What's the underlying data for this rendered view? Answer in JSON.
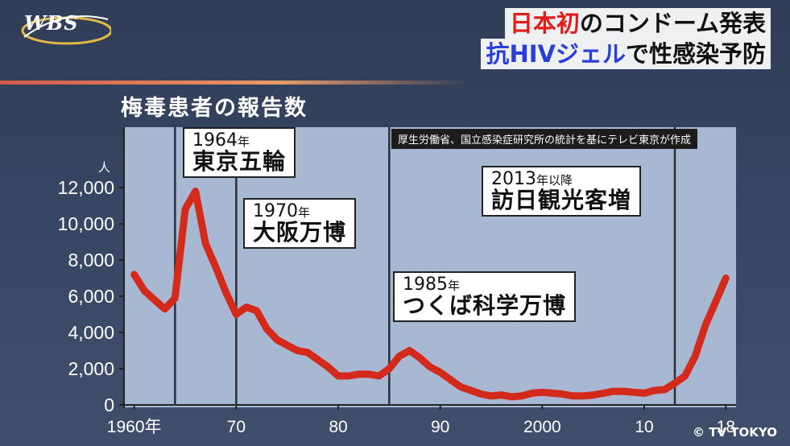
{
  "logo": {
    "text": "WBS"
  },
  "headline": {
    "line1_red": "日本初",
    "line1_rest": "のコンドーム発表",
    "line2_blue": "抗HIVジェル",
    "line2_rest": "で性感染予防"
  },
  "source_note": "厚生労働省、国立感染症研究所の統計を基にテレビ東京が作成",
  "copyright": "© TV TOKYO",
  "events": [
    {
      "year_num": "1964",
      "year_suffix": "年",
      "event": "東京五輪"
    },
    {
      "year_num": "1970",
      "year_suffix": "年",
      "event": "大阪万博"
    },
    {
      "year_num": "1985",
      "year_suffix": "年",
      "event": "つくば科学万博"
    },
    {
      "year_num": "2013",
      "year_suffix": "年以降",
      "event": "訪日観光客増"
    }
  ],
  "colors": {
    "line": "#d42a1c",
    "plot_bg": "#a8b8d3",
    "background": "#34425e",
    "title_red": "#e21b1b",
    "title_blue": "#2a3fd9"
  },
  "chart_data": {
    "type": "line",
    "title": "梅毒患者の報告数",
    "ylabel": "人",
    "xlim": [
      1959,
      2019
    ],
    "ylim": [
      0,
      13000
    ],
    "event_lines": [
      1964,
      1970,
      1985,
      2013
    ],
    "x_ticks": [
      {
        "x": 1960,
        "label": "1960年"
      },
      {
        "x": 1970,
        "label": "70"
      },
      {
        "x": 1980,
        "label": "80"
      },
      {
        "x": 1990,
        "label": "90"
      },
      {
        "x": 2000,
        "label": "2000"
      },
      {
        "x": 2010,
        "label": "10"
      },
      {
        "x": 2018,
        "label": "18"
      }
    ],
    "y_ticks": [
      {
        "y": 0,
        "label": "0"
      },
      {
        "y": 2000,
        "label": "2,000"
      },
      {
        "y": 4000,
        "label": "4,000"
      },
      {
        "y": 6000,
        "label": "6,000"
      },
      {
        "y": 8000,
        "label": "8,000"
      },
      {
        "y": 10000,
        "label": "10,000"
      },
      {
        "y": 12000,
        "label": "12,000"
      }
    ],
    "series": [
      {
        "x": [
          1960,
          1961,
          1962,
          1963,
          1964,
          1965,
          1966,
          1967,
          1968,
          1969,
          1970,
          1971,
          1972,
          1973,
          1974,
          1975,
          1976,
          1977,
          1978,
          1979,
          1980,
          1981,
          1982,
          1983,
          1984,
          1985,
          1986,
          1987,
          1988,
          1989,
          1990,
          1991,
          1992,
          1993,
          1994,
          1995,
          1996,
          1997,
          1998,
          1999,
          2000,
          2001,
          2002,
          2003,
          2004,
          2005,
          2006,
          2007,
          2008,
          2009,
          2010,
          2011,
          2012,
          2013,
          2014,
          2015,
          2016,
          2017,
          2018
        ],
        "y": [
          7200,
          6300,
          5800,
          5300,
          5900,
          10800,
          11800,
          8900,
          7600,
          6200,
          5000,
          5400,
          5200,
          4200,
          3600,
          3300,
          3000,
          2900,
          2500,
          2100,
          1600,
          1600,
          1700,
          1700,
          1600,
          2000,
          2700,
          3000,
          2600,
          2100,
          1800,
          1400,
          1000,
          800,
          600,
          500,
          550,
          450,
          500,
          650,
          700,
          650,
          600,
          500,
          500,
          550,
          650,
          750,
          750,
          700,
          650,
          800,
          850,
          1200,
          1600,
          2700,
          4400,
          5700,
          7000
        ]
      }
    ]
  }
}
